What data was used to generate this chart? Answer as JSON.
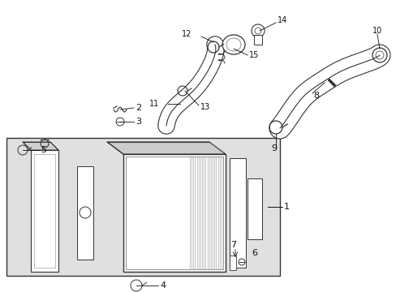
{
  "bg_color": "#ffffff",
  "line_color": "#333333",
  "box_bg": "#e8e8e8",
  "fig_width": 4.89,
  "fig_height": 3.6,
  "dpi": 100
}
